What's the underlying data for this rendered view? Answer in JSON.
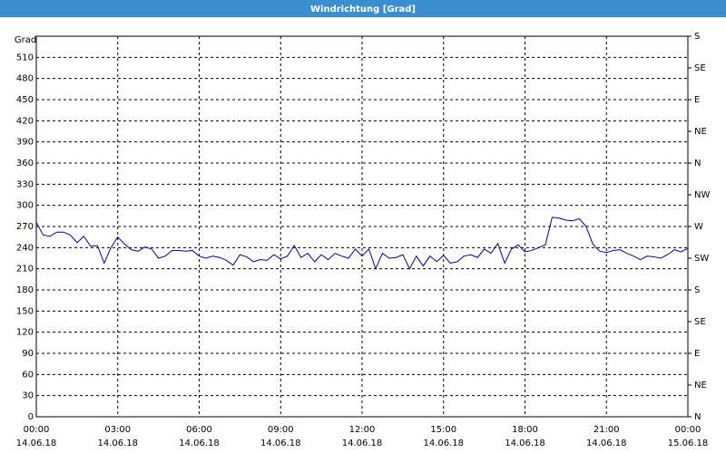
{
  "chart_data": {
    "type": "line",
    "title": "Windrichtung [Grad]",
    "ylabel": "Grad",
    "xlim": [
      0,
      24
    ],
    "xticks": [
      {
        "value": 0,
        "label": [
          "00:00",
          "14.06.18"
        ]
      },
      {
        "value": 3,
        "label": [
          "03:00",
          "14.06.18"
        ]
      },
      {
        "value": 6,
        "label": [
          "06:00",
          "14.06.18"
        ]
      },
      {
        "value": 9,
        "label": [
          "09:00",
          "14.06.18"
        ]
      },
      {
        "value": 12,
        "label": [
          "12:00",
          "14.06.18"
        ]
      },
      {
        "value": 15,
        "label": [
          "15:00",
          "14.06.18"
        ]
      },
      {
        "value": 18,
        "label": [
          "18:00",
          "14.06.18"
        ]
      },
      {
        "value": 21,
        "label": [
          "21:00",
          "14.06.18"
        ]
      },
      {
        "value": 24,
        "label": [
          "00:00",
          "15.06.18"
        ]
      }
    ],
    "ylim": [
      0,
      540
    ],
    "yticks": [
      0,
      30,
      60,
      90,
      120,
      150,
      180,
      210,
      240,
      270,
      300,
      330,
      360,
      390,
      420,
      450,
      480,
      510
    ],
    "y2lim": [
      0,
      540
    ],
    "y2ticks": [
      {
        "value": 0,
        "label": "N"
      },
      {
        "value": 45,
        "label": "NE"
      },
      {
        "value": 90,
        "label": "E"
      },
      {
        "value": 135,
        "label": "SE"
      },
      {
        "value": 180,
        "label": "S"
      },
      {
        "value": 225,
        "label": "SW"
      },
      {
        "value": 270,
        "label": "W"
      },
      {
        "value": 315,
        "label": "NW"
      },
      {
        "value": 360,
        "label": "N"
      },
      {
        "value": 405,
        "label": "NE"
      },
      {
        "value": 450,
        "label": "E"
      },
      {
        "value": 495,
        "label": "SE"
      },
      {
        "value": 540,
        "label": "S"
      }
    ],
    "grid": true,
    "series": [
      {
        "color": "#0000a0",
        "x": [
          0,
          0.25,
          0.5,
          0.75,
          1,
          1.25,
          1.5,
          1.75,
          2,
          2.25,
          2.5,
          2.75,
          3,
          3.25,
          3.5,
          3.75,
          4,
          4.25,
          4.5,
          4.75,
          5,
          5.25,
          5.5,
          5.75,
          6,
          6.25,
          6.5,
          6.75,
          7,
          7.25,
          7.5,
          7.75,
          8,
          8.25,
          8.5,
          8.75,
          9,
          9.25,
          9.5,
          9.75,
          10,
          10.25,
          10.5,
          10.75,
          11,
          11.25,
          11.5,
          11.75,
          12,
          12.25,
          12.5,
          12.75,
          13,
          13.25,
          13.5,
          13.75,
          14,
          14.25,
          14.5,
          14.75,
          15,
          15.25,
          15.5,
          15.75,
          16,
          16.25,
          16.5,
          16.75,
          17,
          17.25,
          17.5,
          17.75,
          18,
          18.25,
          18.5,
          18.75,
          19,
          19.25,
          19.5,
          19.75,
          20,
          20.25,
          20.5,
          20.75,
          21,
          21.25,
          21.5,
          21.75,
          22,
          22.25,
          22.5,
          22.75,
          23,
          23.25,
          23.5,
          23.75,
          24
        ],
        "values": [
          276,
          258,
          256,
          262,
          262,
          258,
          247,
          256,
          242,
          243,
          218,
          240,
          255,
          245,
          237,
          235,
          241,
          238,
          225,
          228,
          236,
          236,
          235,
          236,
          228,
          225,
          228,
          226,
          222,
          215,
          230,
          227,
          220,
          223,
          222,
          230,
          224,
          228,
          243,
          226,
          232,
          220,
          230,
          223,
          232,
          228,
          225,
          238,
          228,
          238,
          210,
          232,
          225,
          226,
          230,
          210,
          228,
          214,
          228,
          220,
          229,
          218,
          220,
          228,
          230,
          226,
          238,
          232,
          246,
          218,
          238,
          244,
          234,
          236,
          240,
          244,
          283,
          282,
          279,
          278,
          281,
          270,
          245,
          235,
          233,
          236,
          237,
          232,
          228,
          223,
          228,
          227,
          225,
          230,
          237,
          234,
          239
        ]
      }
    ]
  }
}
